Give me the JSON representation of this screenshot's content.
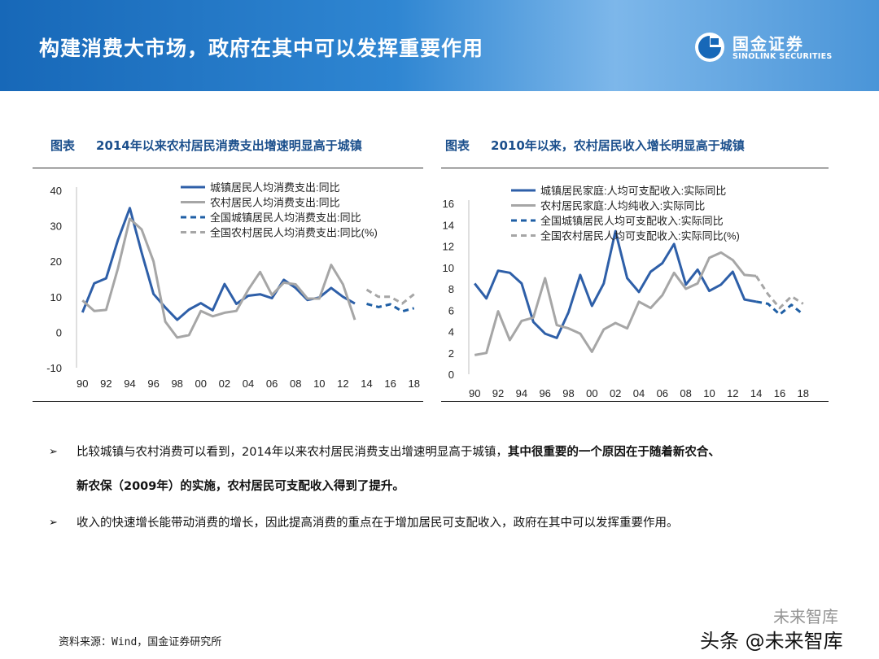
{
  "slide": {
    "title": "构建消费大市场，政府在其中可以发挥重要作用",
    "logo_cn": "国金证券",
    "logo_en": "SINOLINK SECURITIES",
    "brand_color": "#1768b8"
  },
  "left_chart_header": {
    "tag": "图表",
    "title": "2014年以来农村居民消费支出增速明显高于城镇"
  },
  "right_chart_header": {
    "tag": "图表",
    "title": "2010年以来，农村居民收入增长明显高于城镇"
  },
  "bullets": {
    "b1_normal": "比较城镇与农村消费可以看到，2014年以来农村居民消费支出增速明显高于城镇，",
    "b1_bold_a": "其中很重要的一个原因在于随着新农合、",
    "b1_bold_b": "新农保（2009年）的实施，农村居民可支配收入得到了提升。",
    "b2": "收入的快速增长能带动消费的增长，因此提高消费的重点在于增加居民可支配收入，政府在其中可以发挥重要作用。",
    "arrow": "➢"
  },
  "source": "资料来源：Wind，国金证券研究所",
  "watermark": {
    "top": "未来智库",
    "bottom": "头条 @未来智库"
  },
  "chart_data": [
    {
      "type": "line",
      "x_tick_labels": [
        "90",
        "92",
        "94",
        "96",
        "98",
        "00",
        "02",
        "04",
        "06",
        "08",
        "10",
        "12",
        "14",
        "16",
        "18"
      ],
      "x_ticks": [
        1990,
        1992,
        1994,
        1996,
        1998,
        2000,
        2002,
        2004,
        2006,
        2008,
        2010,
        2012,
        2014,
        2016,
        2018
      ],
      "xlim": [
        1989.5,
        2018.5
      ],
      "ylim": [
        -10,
        40
      ],
      "y_ticks": [
        -10,
        0,
        10,
        20,
        30,
        40
      ],
      "legend_position": "top-right",
      "series": [
        {
          "name": "城镇居民人均消费支出:同比",
          "color": "#2e5fa8",
          "dash": "solid",
          "x": [
            1990,
            1991,
            1992,
            1993,
            1994,
            1995,
            1996,
            1997,
            1998,
            1999,
            2000,
            2001,
            2002,
            2003,
            2004,
            2005,
            2006,
            2007,
            2008,
            2009,
            2010,
            2011,
            2012,
            2013
          ],
          "y": [
            5.6,
            13.8,
            15.2,
            26.0,
            35.0,
            22.5,
            10.8,
            7.0,
            3.5,
            6.4,
            8.2,
            6.2,
            13.6,
            8.0,
            10.3,
            10.7,
            9.6,
            14.8,
            12.5,
            9.1,
            9.8,
            12.5,
            10.0,
            8.1
          ]
        },
        {
          "name": "农村居民人均消费支出:同比",
          "color": "#a6a6a6",
          "dash": "solid",
          "x": [
            1990,
            1991,
            1992,
            1993,
            1994,
            1995,
            1996,
            1997,
            1998,
            1999,
            2000,
            2001,
            2002,
            2003,
            2004,
            2005,
            2006,
            2007,
            2008,
            2009,
            2010,
            2011,
            2012,
            2013
          ],
          "y": [
            9.0,
            6.0,
            6.3,
            18.0,
            32.0,
            29.0,
            20.0,
            3.0,
            -1.5,
            -0.8,
            6.0,
            4.5,
            5.5,
            6.0,
            12.0,
            17.0,
            10.5,
            14.0,
            13.5,
            9.5,
            9.5,
            19.0,
            13.5,
            3.5
          ]
        },
        {
          "name": "全国城镇居民人均消费支出:同比",
          "color": "#1f5fa5",
          "dash": "dashed",
          "x": [
            2014,
            2015,
            2016,
            2017,
            2018
          ],
          "y": [
            8.0,
            7.1,
            7.9,
            5.9,
            6.8
          ]
        },
        {
          "name": "全国农村居民人均消费支出:同比(%)",
          "color": "#a6a6a6",
          "dash": "dashed",
          "x": [
            2014,
            2015,
            2016,
            2017,
            2018
          ],
          "y": [
            12.0,
            10.0,
            10.0,
            8.1,
            10.7
          ]
        }
      ]
    },
    {
      "type": "line",
      "x_tick_labels": [
        "90",
        "92",
        "94",
        "96",
        "98",
        "00",
        "02",
        "04",
        "06",
        "08",
        "10",
        "12",
        "14",
        "16",
        "18"
      ],
      "x_ticks": [
        1990,
        1992,
        1994,
        1996,
        1998,
        2000,
        2002,
        2004,
        2006,
        2008,
        2010,
        2012,
        2014,
        2016,
        2018
      ],
      "xlim": [
        1989.5,
        2018.5
      ],
      "ylim": [
        0,
        16
      ],
      "y_ticks": [
        0,
        2,
        4,
        6,
        8,
        10,
        12,
        14,
        16
      ],
      "legend_position": "top-right",
      "series": [
        {
          "name": "城镇居民家庭:人均可支配收入:实际同比",
          "color": "#2e5fa8",
          "dash": "solid",
          "x": [
            1990,
            1991,
            1992,
            1993,
            1994,
            1995,
            1996,
            1997,
            1998,
            1999,
            2000,
            2001,
            2002,
            2003,
            2004,
            2005,
            2006,
            2007,
            2008,
            2009,
            2010,
            2011,
            2012,
            2013,
            2014
          ],
          "y": [
            8.5,
            7.1,
            9.7,
            9.5,
            8.5,
            4.9,
            3.8,
            3.4,
            5.8,
            9.3,
            6.4,
            8.5,
            13.4,
            9.0,
            7.7,
            9.6,
            10.4,
            12.2,
            8.4,
            9.8,
            7.8,
            8.4,
            9.6,
            7.0,
            6.8
          ]
        },
        {
          "name": "农村居民家庭:人均纯收入:实际同比",
          "color": "#a6a6a6",
          "dash": "solid",
          "x": [
            1990,
            1991,
            1992,
            1993,
            1994,
            1995,
            1996,
            1997,
            1998,
            1999,
            2000,
            2001,
            2002,
            2003,
            2004,
            2005,
            2006,
            2007,
            2008,
            2009,
            2010,
            2011,
            2012,
            2013,
            2014
          ],
          "y": [
            1.8,
            2.0,
            5.9,
            3.2,
            5.0,
            5.3,
            9.0,
            4.6,
            4.3,
            3.8,
            2.1,
            4.2,
            4.8,
            4.3,
            6.8,
            6.2,
            7.4,
            9.5,
            8.0,
            8.5,
            10.9,
            11.4,
            10.7,
            9.3,
            9.2
          ]
        },
        {
          "name": "全国城镇居民人均可支配收入:实际同比",
          "color": "#1f5fa5",
          "dash": "dashed",
          "x": [
            2014,
            2015,
            2016,
            2017,
            2018
          ],
          "y": [
            6.8,
            6.6,
            5.6,
            6.5,
            5.6
          ]
        },
        {
          "name": "全国农村居民人均可支配收入:实际同比(%)",
          "color": "#a6a6a6",
          "dash": "dashed",
          "x": [
            2014,
            2015,
            2016,
            2017,
            2018
          ],
          "y": [
            9.2,
            7.5,
            6.2,
            7.3,
            6.6
          ]
        }
      ]
    }
  ]
}
